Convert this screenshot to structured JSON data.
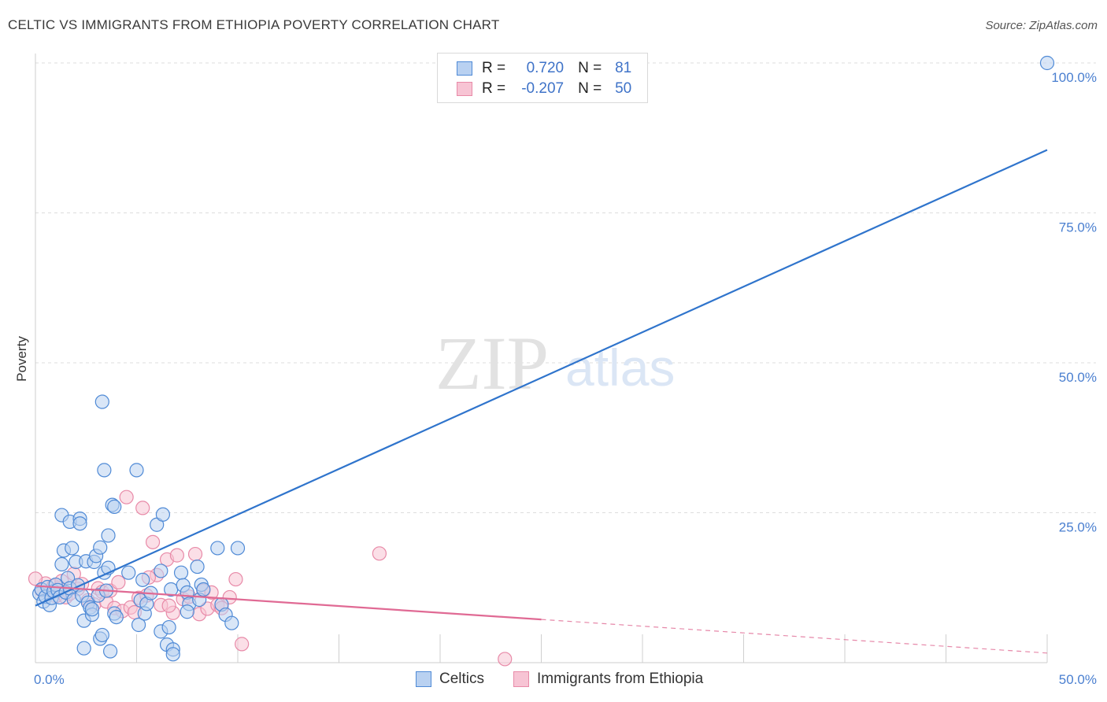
{
  "title": "CELTIC VS IMMIGRANTS FROM ETHIOPIA POVERTY CORRELATION CHART",
  "source": "Source: ZipAtlas.com",
  "watermark": {
    "zip": "ZIP",
    "atlas": "atlas"
  },
  "colors": {
    "blue": "#4f8ad6",
    "blue_fill": "#b9d1f1",
    "blue_line": "#2f74cc",
    "pink": "#e88aa8",
    "pink_fill": "#f7c4d4",
    "pink_line": "#e06a94",
    "tick": "#4a7fd0",
    "grid": "#dddddd"
  },
  "legend": {
    "r_label": "R =",
    "n_label": "N =",
    "series": [
      {
        "r": "0.720",
        "n": "81"
      },
      {
        "r": "-0.207",
        "n": "50"
      }
    ]
  },
  "chart_data": {
    "type": "scatter",
    "title": "CELTIC VS IMMIGRANTS FROM ETHIOPIA POVERTY CORRELATION CHART",
    "xlabel": "",
    "ylabel": "Poverty",
    "xlim": [
      0,
      50
    ],
    "ylim": [
      0,
      100
    ],
    "x_tick_labels": [
      "0.0%",
      "50.0%"
    ],
    "y_ticks": [
      25,
      50,
      75,
      100
    ],
    "y_tick_labels": [
      "25.0%",
      "50.0%",
      "75.0%",
      "100.0%"
    ],
    "legend_position": "top-center",
    "series": [
      {
        "name": "Celtics",
        "trend": {
          "x": [
            0,
            50
          ],
          "y": [
            9.5,
            85.5
          ]
        },
        "points": [
          [
            0.2,
            11.5
          ],
          [
            0.3,
            12.2
          ],
          [
            0.4,
            10.2
          ],
          [
            0.5,
            11.0
          ],
          [
            0.6,
            12.6
          ],
          [
            0.7,
            9.6
          ],
          [
            0.8,
            10.8
          ],
          [
            0.9,
            11.9
          ],
          [
            1.0,
            13.0
          ],
          [
            1.1,
            12.1
          ],
          [
            1.2,
            10.9
          ],
          [
            1.3,
            16.4
          ],
          [
            1.3,
            24.6
          ],
          [
            1.4,
            18.7
          ],
          [
            1.5,
            11.7
          ],
          [
            1.6,
            14.1
          ],
          [
            1.7,
            12.4
          ],
          [
            1.7,
            23.5
          ],
          [
            1.8,
            19.1
          ],
          [
            1.9,
            10.5
          ],
          [
            2.0,
            16.8
          ],
          [
            2.1,
            12.9
          ],
          [
            2.2,
            24.0
          ],
          [
            2.2,
            23.2
          ],
          [
            2.3,
            11.2
          ],
          [
            2.4,
            7.0
          ],
          [
            2.4,
            2.4
          ],
          [
            2.5,
            16.9
          ],
          [
            2.6,
            10.0
          ],
          [
            2.7,
            9.2
          ],
          [
            2.8,
            8.0
          ],
          [
            2.8,
            8.9
          ],
          [
            2.9,
            16.8
          ],
          [
            3.0,
            17.8
          ],
          [
            3.1,
            11.2
          ],
          [
            3.2,
            19.2
          ],
          [
            3.2,
            4.0
          ],
          [
            3.3,
            4.6
          ],
          [
            3.4,
            15.0
          ],
          [
            3.5,
            12.0
          ],
          [
            3.6,
            15.8
          ],
          [
            3.6,
            21.2
          ],
          [
            3.7,
            1.9
          ],
          [
            3.8,
            26.3
          ],
          [
            3.9,
            26.0
          ],
          [
            3.9,
            8.2
          ],
          [
            4.0,
            7.6
          ],
          [
            3.4,
            32.1
          ],
          [
            3.3,
            43.5
          ],
          [
            4.6,
            15.0
          ],
          [
            5.0,
            32.1
          ],
          [
            5.1,
            6.3
          ],
          [
            5.2,
            10.4
          ],
          [
            5.3,
            13.8
          ],
          [
            5.4,
            8.2
          ],
          [
            5.5,
            9.8
          ],
          [
            5.7,
            11.6
          ],
          [
            6.0,
            23.0
          ],
          [
            6.2,
            5.2
          ],
          [
            6.3,
            24.7
          ],
          [
            6.5,
            3.0
          ],
          [
            6.6,
            5.9
          ],
          [
            6.8,
            2.2
          ],
          [
            6.2,
            15.3
          ],
          [
            6.7,
            12.2
          ],
          [
            7.2,
            15.0
          ],
          [
            7.3,
            12.9
          ],
          [
            7.5,
            11.7
          ],
          [
            7.6,
            9.8
          ],
          [
            8.0,
            16.0
          ],
          [
            8.1,
            10.5
          ],
          [
            8.2,
            13.0
          ],
          [
            8.3,
            12.2
          ],
          [
            9.0,
            19.1
          ],
          [
            9.2,
            9.7
          ],
          [
            9.4,
            8.0
          ],
          [
            9.7,
            6.6
          ],
          [
            10.0,
            19.1
          ],
          [
            6.8,
            1.4
          ],
          [
            7.5,
            8.5
          ],
          [
            50.0,
            100.0
          ]
        ]
      },
      {
        "name": "Immigrants from Ethiopia",
        "trend": {
          "x": [
            0,
            25
          ],
          "y": [
            12.8,
            7.2
          ]
        },
        "trend_dashed": {
          "x": [
            25,
            50
          ],
          "y": [
            7.2,
            1.6
          ]
        },
        "points": [
          [
            0.3,
            12.1
          ],
          [
            0.5,
            13.2
          ],
          [
            0.7,
            11.6
          ],
          [
            0.9,
            12.8
          ],
          [
            1.0,
            11.1
          ],
          [
            1.2,
            12.5
          ],
          [
            1.3,
            13.6
          ],
          [
            1.5,
            10.9
          ],
          [
            1.7,
            11.5
          ],
          [
            1.9,
            14.8
          ],
          [
            2.1,
            12.3
          ],
          [
            2.3,
            13.1
          ],
          [
            2.6,
            10.4
          ],
          [
            2.9,
            9.7
          ],
          [
            3.1,
            12.4
          ],
          [
            3.3,
            11.8
          ],
          [
            3.5,
            10.2
          ],
          [
            3.7,
            12.0
          ],
          [
            3.9,
            9.1
          ],
          [
            4.1,
            13.4
          ],
          [
            4.3,
            8.6
          ],
          [
            4.5,
            27.6
          ],
          [
            4.7,
            9.2
          ],
          [
            4.9,
            8.4
          ],
          [
            5.1,
            10.8
          ],
          [
            5.3,
            25.8
          ],
          [
            5.5,
            11.2
          ],
          [
            5.8,
            20.1
          ],
          [
            6.0,
            14.6
          ],
          [
            6.2,
            9.6
          ],
          [
            6.5,
            17.2
          ],
          [
            6.8,
            8.3
          ],
          [
            7.0,
            17.9
          ],
          [
            7.3,
            10.6
          ],
          [
            7.6,
            11.0
          ],
          [
            7.9,
            18.1
          ],
          [
            8.1,
            8.1
          ],
          [
            8.3,
            12.0
          ],
          [
            8.5,
            9.0
          ],
          [
            8.7,
            11.7
          ],
          [
            9.0,
            9.6
          ],
          [
            9.2,
            9.1
          ],
          [
            9.6,
            10.9
          ],
          [
            9.9,
            13.9
          ],
          [
            10.2,
            3.1
          ],
          [
            17.0,
            18.2
          ],
          [
            6.6,
            9.5
          ],
          [
            5.6,
            14.2
          ],
          [
            0.0,
            14.0
          ],
          [
            23.2,
            0.6
          ]
        ]
      }
    ]
  }
}
